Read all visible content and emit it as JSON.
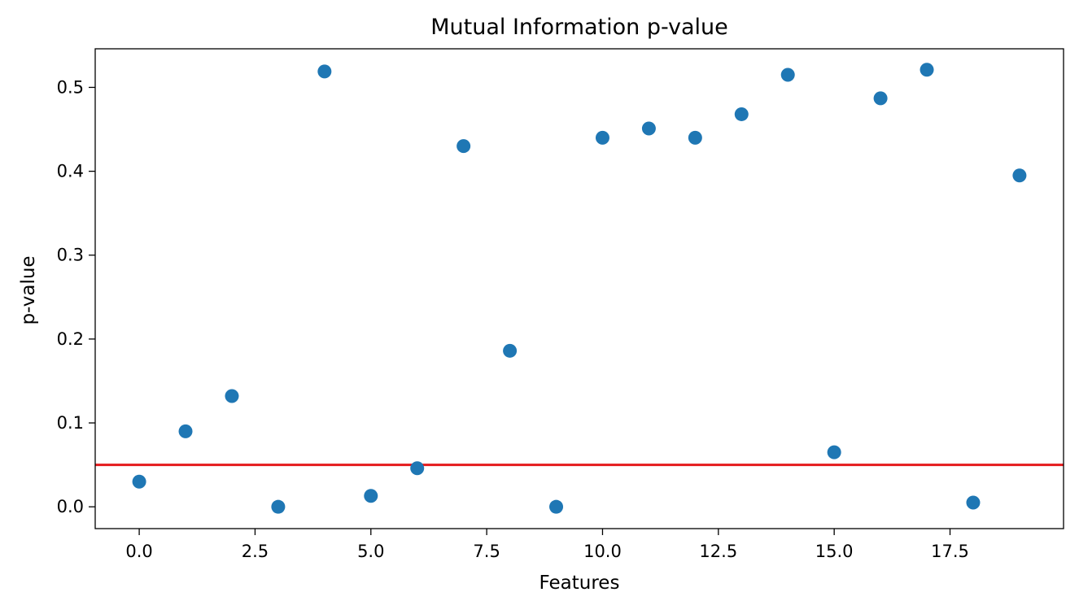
{
  "chart_data": {
    "type": "scatter",
    "title": "Mutual Information p-value",
    "xlabel": "Features",
    "ylabel": "p-value",
    "xlim": [
      -0.95,
      19.95
    ],
    "ylim": [
      -0.026,
      0.546
    ],
    "xticks": [
      0.0,
      2.5,
      5.0,
      7.5,
      10.0,
      12.5,
      15.0,
      17.5
    ],
    "xtick_labels": [
      "0.0",
      "2.5",
      "5.0",
      "7.5",
      "10.0",
      "12.5",
      "15.0",
      "17.5"
    ],
    "yticks": [
      0.0,
      0.1,
      0.2,
      0.3,
      0.4,
      0.5
    ],
    "ytick_labels": [
      "0.0",
      "0.1",
      "0.2",
      "0.3",
      "0.4",
      "0.5"
    ],
    "grid": false,
    "legend": "none",
    "series": [
      {
        "x": [
          0,
          1,
          2,
          3,
          4,
          5,
          6,
          7,
          8,
          9,
          10,
          11,
          12,
          13,
          14,
          15,
          16,
          17,
          18,
          19
        ],
        "y": [
          0.03,
          0.09,
          0.132,
          0.0,
          0.519,
          0.013,
          0.046,
          0.43,
          0.186,
          0.0,
          0.44,
          0.451,
          0.44,
          0.468,
          0.515,
          0.065,
          0.487,
          0.521,
          0.005,
          0.395
        ],
        "color": "#1f77b4"
      }
    ],
    "reference_line": {
      "orientation": "horizontal",
      "y": 0.05,
      "color": "#e41a1c"
    }
  }
}
